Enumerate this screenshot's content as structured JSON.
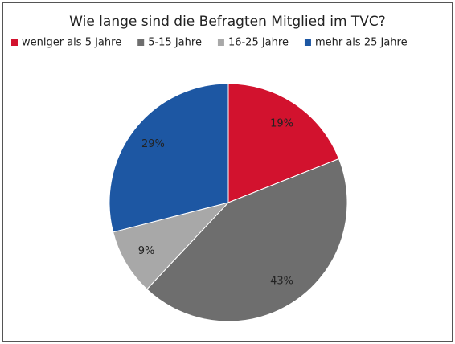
{
  "chart_data": {
    "type": "pie",
    "title": "Wie lange sind die Befragten Mitglied im TVC?",
    "categories": [
      "weniger als 5 Jahre",
      "5-15 Jahre",
      "16-25 Jahre",
      "mehr als 25 Jahre"
    ],
    "values": [
      19,
      43,
      9,
      29
    ],
    "value_labels": [
      "19%",
      "43%",
      "9%",
      "29%"
    ],
    "colors": [
      "#d2122e",
      "#6e6e6e",
      "#a8a8a8",
      "#1d57a3"
    ],
    "legend": "top"
  }
}
